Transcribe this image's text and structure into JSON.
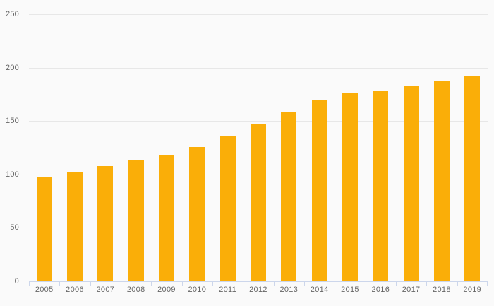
{
  "page": {
    "background_color": "#fafafa"
  },
  "chart_data": {
    "type": "bar",
    "title": "",
    "xlabel": "",
    "ylabel": "",
    "categories": [
      "2005",
      "2006",
      "2007",
      "2008",
      "2009",
      "2010",
      "2011",
      "2012",
      "2013",
      "2014",
      "2015",
      "2016",
      "2017",
      "2018",
      "2019"
    ],
    "values": [
      97,
      102,
      108,
      114,
      118,
      126,
      136,
      147,
      158,
      169,
      176,
      178,
      183,
      188,
      192
    ],
    "ylim": [
      0,
      250
    ],
    "yticks": [
      0,
      50,
      100,
      150,
      200,
      250
    ],
    "ytick_labels": [
      "0",
      "50",
      "100",
      "150",
      "200",
      "250"
    ],
    "grid": "horizontal",
    "legend_position": "none",
    "bar_color": "#faae08",
    "grid_color": "#e7e7e7",
    "axis_color": "#ccd6eb",
    "label_color": "#666666"
  }
}
